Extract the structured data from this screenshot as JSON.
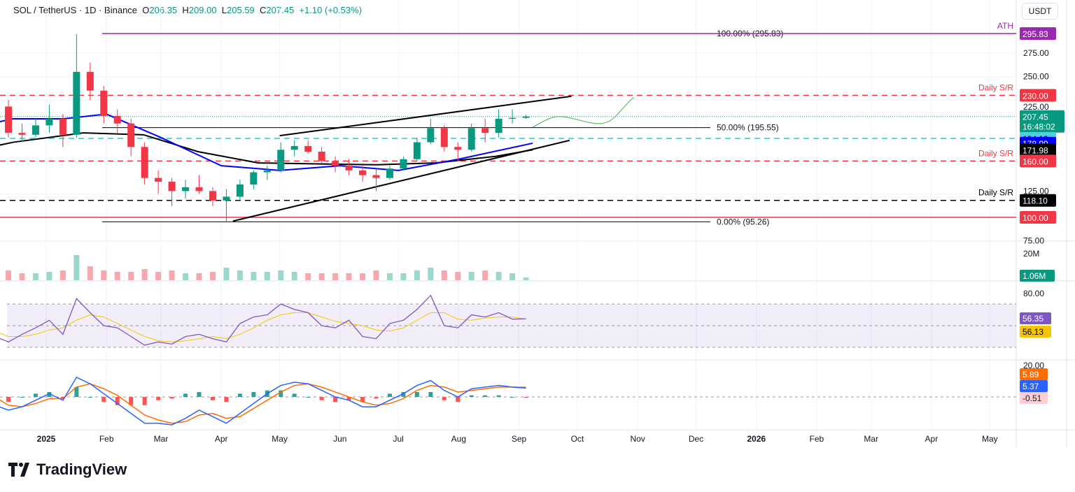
{
  "header": {
    "symbol": "SOL / TetherUS · 1D · Binance",
    "open_label": "O",
    "open": "206.35",
    "high_label": "H",
    "high": "209.00",
    "low_label": "L",
    "low": "205.59",
    "close_label": "C",
    "close": "207.45",
    "change": "+1.10 (+0.53%)"
  },
  "currency": "USDT",
  "logo": "TradingView",
  "colors": {
    "up": "#089981",
    "down": "#f23645",
    "ema100": "#0000ff",
    "ema200": "#000000",
    "rsi": "#7e57c2",
    "rsi_ma": "#f7c600",
    "macd": "#2962ff",
    "signal": "#ff6d00"
  },
  "chart_data": {
    "type": "candlestick",
    "timeframe": "1D",
    "x_ticks": [
      "2025",
      "Feb",
      "Mar",
      "Apr",
      "May",
      "Jun",
      "Jul",
      "Aug",
      "Sep",
      "Oct",
      "Nov",
      "Dec",
      "2026",
      "Feb",
      "Mar",
      "Apr",
      "May"
    ],
    "x_tick_dates": [
      "2025-01-01",
      "2025-02-01",
      "2025-03-01",
      "2025-04-01",
      "2025-05-01",
      "2025-06-01",
      "2025-07-01",
      "2025-08-01",
      "2025-09-01",
      "2025-10-01",
      "2025-11-01",
      "2025-12-01",
      "2026-01-01",
      "2026-02-01",
      "2026-03-01",
      "2026-04-01",
      "2026-05-01"
    ],
    "y_ticks": [
      "275.00",
      "250.00",
      "225.00",
      "125.00",
      "75.00"
    ],
    "y_tick_values": [
      275,
      250,
      225,
      125,
      75
    ],
    "ylim": [
      75,
      300
    ],
    "weekly_ohlc_start": "2024-11-11",
    "ohlc": [
      [
        225,
        248,
        220,
        240
      ],
      [
        240,
        252,
        228,
        235
      ],
      [
        235,
        245,
        222,
        228
      ],
      [
        228,
        240,
        210,
        218
      ],
      [
        218,
        225,
        185,
        190
      ],
      [
        190,
        200,
        180,
        188
      ],
      [
        188,
        205,
        185,
        198
      ],
      [
        198,
        220,
        190,
        205
      ],
      [
        205,
        210,
        175,
        188
      ],
      [
        188,
        295,
        185,
        255
      ],
      [
        255,
        265,
        225,
        235
      ],
      [
        235,
        240,
        200,
        208
      ],
      [
        208,
        215,
        190,
        200
      ],
      [
        200,
        205,
        165,
        175
      ],
      [
        175,
        180,
        135,
        142
      ],
      [
        142,
        150,
        125,
        138
      ],
      [
        138,
        142,
        112,
        128
      ],
      [
        128,
        140,
        120,
        132
      ],
      [
        132,
        145,
        125,
        128
      ],
      [
        128,
        132,
        112,
        118
      ],
      [
        118,
        130,
        95,
        122
      ],
      [
        122,
        140,
        118,
        135
      ],
      [
        135,
        150,
        130,
        148
      ],
      [
        148,
        155,
        140,
        150
      ],
      [
        150,
        180,
        148,
        172
      ],
      [
        172,
        182,
        165,
        176
      ],
      [
        176,
        182,
        168,
        170
      ],
      [
        170,
        175,
        158,
        160
      ],
      [
        160,
        165,
        148,
        155
      ],
      [
        155,
        162,
        145,
        150
      ],
      [
        150,
        155,
        138,
        145
      ],
      [
        145,
        152,
        128,
        142
      ],
      [
        142,
        155,
        140,
        152
      ],
      [
        152,
        165,
        150,
        162
      ],
      [
        162,
        185,
        160,
        180
      ],
      [
        180,
        205,
        178,
        195
      ],
      [
        195,
        198,
        170,
        175
      ],
      [
        175,
        180,
        160,
        172
      ],
      [
        172,
        200,
        170,
        195
      ],
      [
        195,
        205,
        180,
        190
      ],
      [
        190,
        215,
        185,
        205
      ],
      [
        205,
        215,
        200,
        206
      ],
      [
        206,
        209,
        205,
        207.45
      ]
    ],
    "ema100": [
      [
        "2024-11-11",
        190
      ],
      [
        "2024-12-15",
        205
      ],
      [
        "2025-01-10",
        205
      ],
      [
        "2025-02-01",
        210
      ],
      [
        "2025-03-01",
        185
      ],
      [
        "2025-04-01",
        155
      ],
      [
        "2025-05-01",
        150
      ],
      [
        "2025-06-01",
        155
      ],
      [
        "2025-07-01",
        150
      ],
      [
        "2025-08-01",
        162
      ],
      [
        "2025-09-08",
        178.99
      ]
    ],
    "ema200": [
      [
        "2024-11-11",
        165
      ],
      [
        "2024-12-15",
        180
      ],
      [
        "2025-01-20",
        190
      ],
      [
        "2025-02-20",
        188
      ],
      [
        "2025-03-20",
        170
      ],
      [
        "2025-04-20",
        158
      ],
      [
        "2025-05-20",
        157
      ],
      [
        "2025-06-20",
        156
      ],
      [
        "2025-07-20",
        158
      ],
      [
        "2025-08-20",
        165
      ],
      [
        "2025-09-08",
        171.98
      ]
    ],
    "levels": [
      {
        "price": 295.83,
        "label": "295.83",
        "tag": "ATH",
        "color": "#9c27b0",
        "style": "solid"
      },
      {
        "price": 230.0,
        "label": "230.00",
        "tag": "Daily S/R",
        "color": "#f23645",
        "style": "dashed"
      },
      {
        "price": 207.45,
        "label": "207.45",
        "countdown": "16:48:02",
        "color": "#089981",
        "style": "dotted"
      },
      {
        "price": 184.13,
        "label": "184.13",
        "color": "#26c6da",
        "style": "dashed"
      },
      {
        "price": 178.99,
        "label": "178.99",
        "color": "#0000ff",
        "style": "none"
      },
      {
        "price": 171.98,
        "label": "171.98",
        "color": "#000000",
        "style": "none"
      },
      {
        "price": 160.0,
        "label": "160.00",
        "tag": "Daily S/R",
        "color": "#f23645",
        "style": "dashed"
      },
      {
        "price": 118.1,
        "label": "118.10",
        "tag": "Daily S/R",
        "color": "#000000",
        "style": "dashed"
      },
      {
        "price": 100.0,
        "label": "100.00",
        "color": "#f23645",
        "style": "solid"
      }
    ],
    "fib": [
      {
        "price": 295.83,
        "label": "100.00% (295.83)"
      },
      {
        "price": 195.55,
        "label": "50.00% (195.55)"
      },
      {
        "price": 95.26,
        "label": "0.00% (95.26)"
      }
    ],
    "channel": [
      [
        [
          "2025-05-01",
          187
        ],
        [
          "2025-09-28",
          229
        ]
      ],
      [
        [
          "2025-04-07",
          96
        ],
        [
          "2025-09-27",
          182
        ]
      ]
    ],
    "projection": [
      [
        "2025-09-08",
        196
      ],
      [
        "2025-09-20",
        210
      ],
      [
        "2025-10-05",
        202
      ],
      [
        "2025-10-20",
        210
      ],
      [
        "2025-10-30",
        228
      ]
    ],
    "volume": {
      "tick": "20M",
      "last": "1.06M",
      "values": [
        5,
        6,
        5,
        6,
        7,
        5,
        5,
        6,
        7,
        18,
        10,
        7,
        6,
        6,
        8,
        6,
        7,
        5,
        5,
        6,
        9,
        7,
        6,
        6,
        7,
        6,
        5,
        5,
        5,
        5,
        5,
        7,
        5,
        5,
        7,
        9,
        7,
        6,
        6,
        7,
        6,
        5,
        2
      ]
    },
    "rsi": {
      "ticks": [
        "80.00"
      ],
      "value": "56.35",
      "ma": "56.13",
      "bands": [
        70,
        50,
        30
      ],
      "values": [
        62,
        55,
        45,
        40,
        35,
        42,
        48,
        55,
        42,
        75,
        62,
        50,
        48,
        40,
        32,
        35,
        33,
        40,
        42,
        38,
        35,
        52,
        58,
        60,
        70,
        65,
        62,
        50,
        48,
        55,
        40,
        38,
        52,
        55,
        65,
        78,
        50,
        48,
        60,
        58,
        62,
        56,
        56.35
      ],
      "ma_values": [
        60,
        58,
        50,
        45,
        40,
        40,
        42,
        46,
        48,
        55,
        60,
        58,
        52,
        46,
        40,
        36,
        35,
        36,
        38,
        40,
        38,
        42,
        48,
        55,
        60,
        62,
        62,
        58,
        54,
        52,
        50,
        46,
        45,
        48,
        55,
        62,
        62,
        56,
        55,
        57,
        58,
        58,
        56.13
      ]
    },
    "macd": {
      "tick": "20.00",
      "macd": "5.37",
      "signal": "5.89",
      "hist": "-0.51",
      "macd_values": [
        12,
        10,
        2,
        -5,
        -8,
        -6,
        -2,
        2,
        -2,
        12,
        8,
        2,
        -4,
        -10,
        -16,
        -16,
        -17,
        -13,
        -8,
        -12,
        -16,
        -10,
        -4,
        2,
        7,
        9,
        8,
        4,
        0,
        -2,
        -6,
        -6,
        -2,
        2,
        7,
        10,
        4,
        0,
        5,
        6,
        7,
        6,
        5.37
      ],
      "signal_values": [
        14,
        12,
        6,
        0,
        -5,
        -6,
        -4,
        -1,
        -1,
        6,
        8,
        5,
        1,
        -5,
        -11,
        -14,
        -16,
        -15,
        -11,
        -10,
        -13,
        -12,
        -7,
        -2,
        3,
        7,
        8,
        6,
        3,
        0,
        -3,
        -5,
        -4,
        -1,
        4,
        7,
        6,
        3,
        4,
        5,
        6,
        6,
        5.89
      ]
    }
  }
}
